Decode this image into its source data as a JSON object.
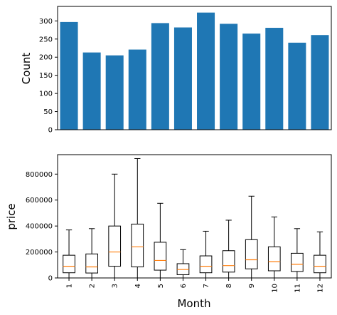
{
  "chart_data": [
    {
      "type": "bar",
      "categories": [
        "1",
        "2",
        "3",
        "4",
        "5",
        "6",
        "7",
        "8",
        "9",
        "10",
        "11",
        "12"
      ],
      "values": [
        297,
        213,
        205,
        221,
        294,
        282,
        323,
        292,
        265,
        281,
        240,
        261
      ],
      "xlabel": "",
      "ylabel": "Count",
      "ylim": [
        0,
        340
      ],
      "yticks": [
        "0",
        "50",
        "100",
        "150",
        "200",
        "250",
        "300"
      ],
      "show_x_ticklabels": false,
      "grid": false,
      "bar_color": "#1f77b4"
    },
    {
      "type": "box",
      "categories": [
        "1",
        "2",
        "3",
        "4",
        "5",
        "6",
        "7",
        "8",
        "9",
        "10",
        "11",
        "12"
      ],
      "xlabel": "Month",
      "ylabel": "price",
      "ylim": [
        0,
        950000
      ],
      "yticks": [
        "0",
        "200000",
        "400000",
        "600000",
        "800000"
      ],
      "grid": false,
      "median_color": "#ff7f0e",
      "boxes": [
        {
          "whislo": 0,
          "q1": 40000,
          "med": 90000,
          "q3": 175000,
          "whishi": 370000
        },
        {
          "whislo": 0,
          "q1": 38000,
          "med": 85000,
          "q3": 185000,
          "whishi": 380000
        },
        {
          "whislo": 0,
          "q1": 90000,
          "med": 200000,
          "q3": 400000,
          "whishi": 800000
        },
        {
          "whislo": 0,
          "q1": 85000,
          "med": 240000,
          "q3": 415000,
          "whishi": 920000
        },
        {
          "whislo": 0,
          "q1": 60000,
          "med": 135000,
          "q3": 275000,
          "whishi": 575000
        },
        {
          "whislo": 0,
          "q1": 25000,
          "med": 65000,
          "q3": 110000,
          "whishi": 218000
        },
        {
          "whislo": 0,
          "q1": 40000,
          "med": 90000,
          "q3": 170000,
          "whishi": 360000
        },
        {
          "whislo": 0,
          "q1": 45000,
          "med": 95000,
          "q3": 210000,
          "whishi": 445000
        },
        {
          "whislo": 0,
          "q1": 70000,
          "med": 140000,
          "q3": 295000,
          "whishi": 630000
        },
        {
          "whislo": 0,
          "q1": 55000,
          "med": 125000,
          "q3": 240000,
          "whishi": 470000
        },
        {
          "whislo": 0,
          "q1": 50000,
          "med": 105000,
          "q3": 190000,
          "whishi": 380000
        },
        {
          "whislo": 0,
          "q1": 40000,
          "med": 90000,
          "q3": 175000,
          "whishi": 355000
        }
      ]
    }
  ]
}
